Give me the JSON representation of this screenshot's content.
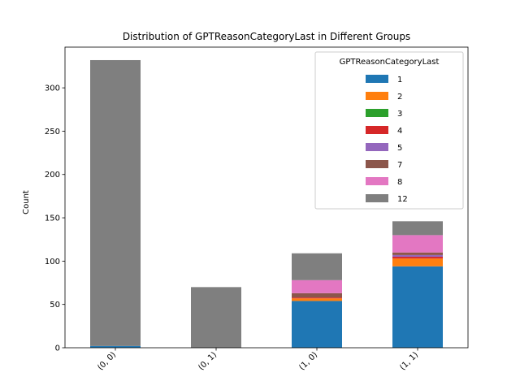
{
  "chart_data": {
    "type": "bar",
    "stacked": true,
    "title": "Distribution of GPTReasonCategoryLast in Different Groups",
    "xlabel": "",
    "ylabel": "Count",
    "ylim": [
      0,
      347
    ],
    "yticks": [
      0,
      50,
      100,
      150,
      200,
      250,
      300
    ],
    "categories": [
      "(0, 0)",
      "(0, 1)",
      "(1, 0)",
      "(1, 1)"
    ],
    "legend": {
      "title": "GPTReasonCategoryLast",
      "placement": "top-right"
    },
    "series": [
      {
        "name": "1",
        "color": "#1f77b4",
        "values": [
          2,
          0,
          54,
          94
        ]
      },
      {
        "name": "2",
        "color": "#ff7f0e",
        "values": [
          0,
          0,
          3,
          9
        ]
      },
      {
        "name": "3",
        "color": "#2ca02c",
        "values": [
          0,
          0,
          0,
          0
        ]
      },
      {
        "name": "4",
        "color": "#d62728",
        "values": [
          0,
          0,
          1,
          2
        ]
      },
      {
        "name": "5",
        "color": "#9467bd",
        "values": [
          0,
          0,
          0,
          2
        ]
      },
      {
        "name": "7",
        "color": "#8c564b",
        "values": [
          0,
          0,
          5,
          3
        ]
      },
      {
        "name": "8",
        "color": "#e377c2",
        "values": [
          0,
          0,
          15,
          20
        ]
      },
      {
        "name": "12",
        "color": "#7f7f7f",
        "values": [
          330,
          70,
          31,
          16
        ]
      }
    ]
  }
}
